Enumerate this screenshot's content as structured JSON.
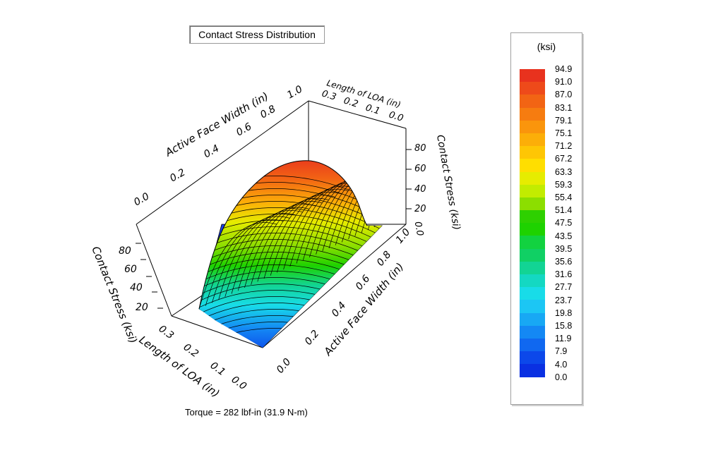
{
  "title": "Contact Stress Distribution",
  "footer": "Torque = 282 lbf-in (31.9 N-m)",
  "legend": {
    "unit": "(ksi)",
    "ticks": [
      "94.9",
      "91.0",
      "87.0",
      "83.1",
      "79.1",
      "75.1",
      "71.2",
      "67.2",
      "63.3",
      "59.3",
      "55.4",
      "51.4",
      "47.5",
      "43.5",
      "39.5",
      "35.6",
      "31.6",
      "27.7",
      "23.7",
      "19.8",
      "15.8",
      "11.9",
      "7.9",
      "4.0",
      "0.0"
    ],
    "colors": [
      "#e8321e",
      "#ee4a1a",
      "#f26414",
      "#f67c10",
      "#fa950c",
      "#fcae08",
      "#fec604",
      "#ffde00",
      "#e6ec00",
      "#c2ec00",
      "#8cde00",
      "#2ed000",
      "#1ed200",
      "#12d240",
      "#10d064",
      "#12d494",
      "#14d8c2",
      "#18dce8",
      "#1cc6f4",
      "#18a8f4",
      "#1488f4",
      "#1068f0",
      "#0c48ea",
      "#0a30e2"
    ]
  },
  "chart_data": {
    "type": "surface",
    "title": "Contact Stress Distribution",
    "x_axis": {
      "label": "Active Face Width (in)",
      "range": [
        0.0,
        1.0
      ],
      "ticks": [
        "0.0",
        "0.2",
        "0.4",
        "0.6",
        "0.8",
        "1.0"
      ]
    },
    "y_axis": {
      "label": "Length of LOA (in)",
      "range": [
        0.0,
        0.3
      ],
      "ticks": [
        "0.0",
        "0.1",
        "0.2",
        "0.3"
      ]
    },
    "z_axis": {
      "label": "Contact Stress (ksi)",
      "range": [
        0,
        94.9
      ],
      "ticks": [
        "20",
        "40",
        "60",
        "80"
      ]
    },
    "z_axis_right_ticks": [
      "0.0",
      "20",
      "40",
      "60",
      "80"
    ],
    "peak_stress_ksi": 94.9,
    "colorbar_unit": "(ksi)",
    "annotation": "Torque = 282 lbf-in (31.9 N-m)"
  }
}
